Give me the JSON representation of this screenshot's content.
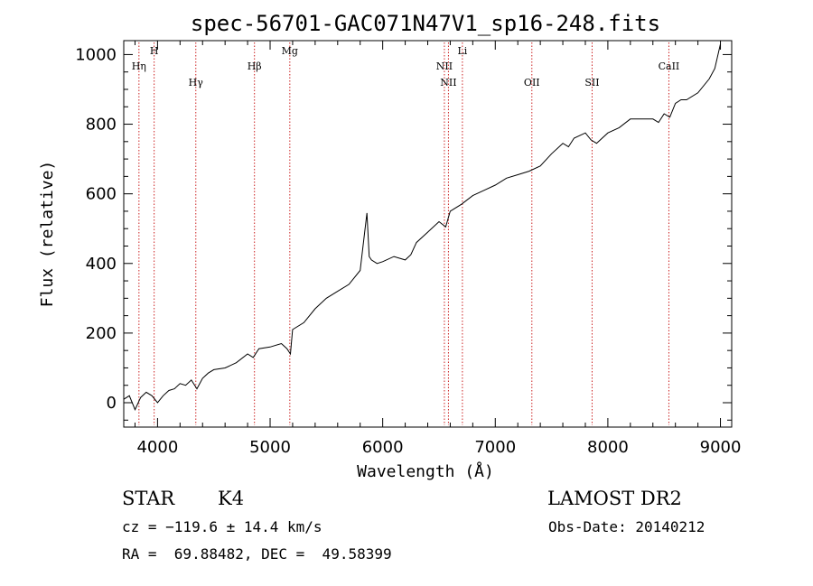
{
  "chart_data": {
    "type": "line",
    "title": "spec-56701-GAC071N47V1_sp16-248.fits",
    "xlabel": "Wavelength (Å)",
    "ylabel": "Flux (relative)",
    "xlim": [
      3700,
      9100
    ],
    "ylim": [
      -70,
      1040
    ],
    "xticks": [
      4000,
      5000,
      6000,
      7000,
      8000,
      9000
    ],
    "yticks": [
      0,
      200,
      400,
      600,
      800,
      1000
    ],
    "grid": false,
    "series": [
      {
        "x": [
          3700,
          3750,
          3800,
          3850,
          3900,
          3950,
          4000,
          4050,
          4100,
          4150,
          4200,
          4250,
          4300,
          4350,
          4400,
          4450,
          4500,
          4600,
          4700,
          4800,
          4850,
          4900,
          5000,
          5100,
          5150,
          5180,
          5200,
          5300,
          5400,
          5500,
          5600,
          5700,
          5800,
          5840,
          5860,
          5880,
          5900,
          5950,
          6000,
          6100,
          6200,
          6250,
          6300,
          6400,
          6500,
          6560,
          6600,
          6700,
          6800,
          6900,
          7000,
          7100,
          7200,
          7300,
          7400,
          7500,
          7600,
          7650,
          7700,
          7800,
          7850,
          7900,
          8000,
          8100,
          8200,
          8300,
          8400,
          8450,
          8500,
          8550,
          8600,
          8650,
          8700,
          8800,
          8900,
          8950,
          9000
        ],
        "y": [
          10,
          20,
          -20,
          15,
          30,
          20,
          0,
          20,
          35,
          40,
          55,
          50,
          65,
          40,
          70,
          85,
          95,
          100,
          115,
          140,
          130,
          155,
          160,
          170,
          155,
          140,
          210,
          230,
          270,
          300,
          320,
          340,
          380,
          490,
          545,
          420,
          410,
          400,
          405,
          420,
          410,
          425,
          460,
          490,
          520,
          505,
          550,
          570,
          595,
          610,
          625,
          645,
          655,
          665,
          680,
          715,
          745,
          735,
          760,
          775,
          755,
          745,
          775,
          790,
          815,
          815,
          815,
          805,
          830,
          820,
          860,
          870,
          870,
          890,
          930,
          960,
          1030
        ]
      }
    ],
    "annotations": [
      "Hη",
      "H",
      "Hγ",
      "Hβ",
      "Mg",
      "NII",
      "NII",
      "Li",
      "OII",
      "SII",
      "CaII"
    ],
    "line_marks": [
      {
        "label": "Hη",
        "wavelength": 3835
      },
      {
        "label": "H",
        "wavelength": 3970
      },
      {
        "label": "Hγ",
        "wavelength": 4340
      },
      {
        "label": "Hβ",
        "wavelength": 4861
      },
      {
        "label": "Mg",
        "wavelength": 5175
      },
      {
        "label": "NII",
        "wavelength": 6548
      },
      {
        "label": "NII",
        "wavelength": 6584
      },
      {
        "label": "Li",
        "wavelength": 6708
      },
      {
        "label": "OII",
        "wavelength": 7325
      },
      {
        "label": "SII",
        "wavelength": 7860
      },
      {
        "label": "CaII",
        "wavelength": 8542
      }
    ]
  },
  "info": {
    "class_label": "STAR",
    "subclass": "K4",
    "survey": "LAMOST DR2",
    "cz": "cz = −119.6 ± 14.4 km/s",
    "obs_date": "Obs-Date: 20140212",
    "radec": "RA =  69.88482, DEC =  49.58399"
  },
  "colors": {
    "spectrum": "#000000",
    "line_marker": "#cc2222",
    "background": "#ffffff"
  }
}
